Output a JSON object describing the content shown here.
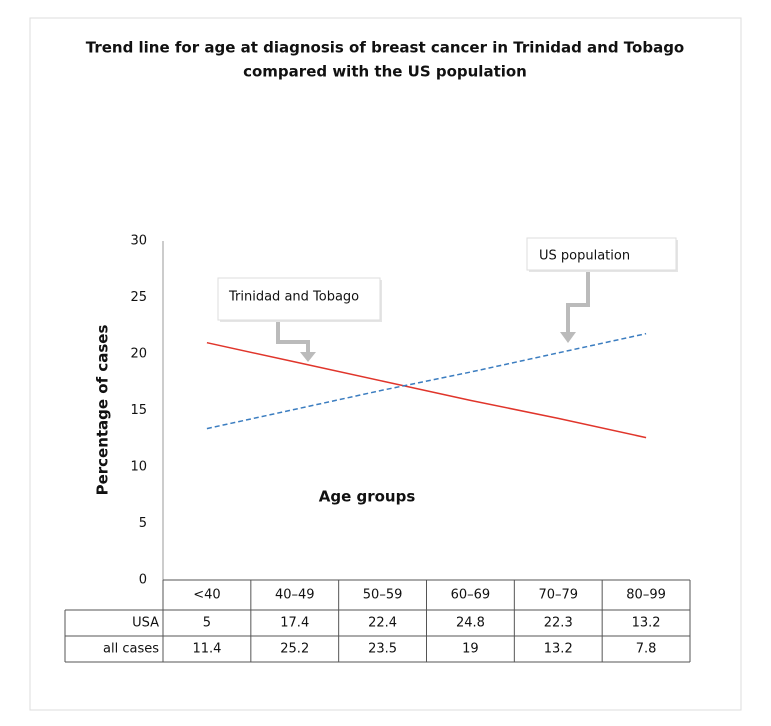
{
  "chart_data": {
    "type": "line",
    "title": [
      "Trend line for age at diagnosis of breast cancer in Trinidad and Tobago",
      "compared with the US population"
    ],
    "y_label": "Percentage of cases",
    "x_label": "Age groups",
    "categories": [
      "<40",
      "40–49",
      "50–59",
      "60–69",
      "70–79",
      "80–99"
    ],
    "series": [
      {
        "name": "Trinidad and Tobago",
        "color": "#e0352b",
        "dashed": false,
        "values": [
          21.0,
          19.3,
          17.6,
          15.9,
          14.3,
          12.6
        ]
      },
      {
        "name": "US population",
        "color": "#3b7dc0",
        "dashed": true,
        "values": [
          13.4,
          15.1,
          16.8,
          18.4,
          20.1,
          21.8
        ]
      }
    ],
    "ylim": [
      0,
      30
    ],
    "yticks": [
      0,
      5,
      10,
      15,
      20,
      25,
      30
    ],
    "grid": false,
    "table": [
      {
        "label": "USA",
        "values": [
          5,
          17.4,
          22.4,
          24.8,
          22.3,
          13.2
        ]
      },
      {
        "label": "all cases",
        "values": [
          11.4,
          25.2,
          23.5,
          19,
          13.2,
          7.8
        ]
      }
    ]
  }
}
